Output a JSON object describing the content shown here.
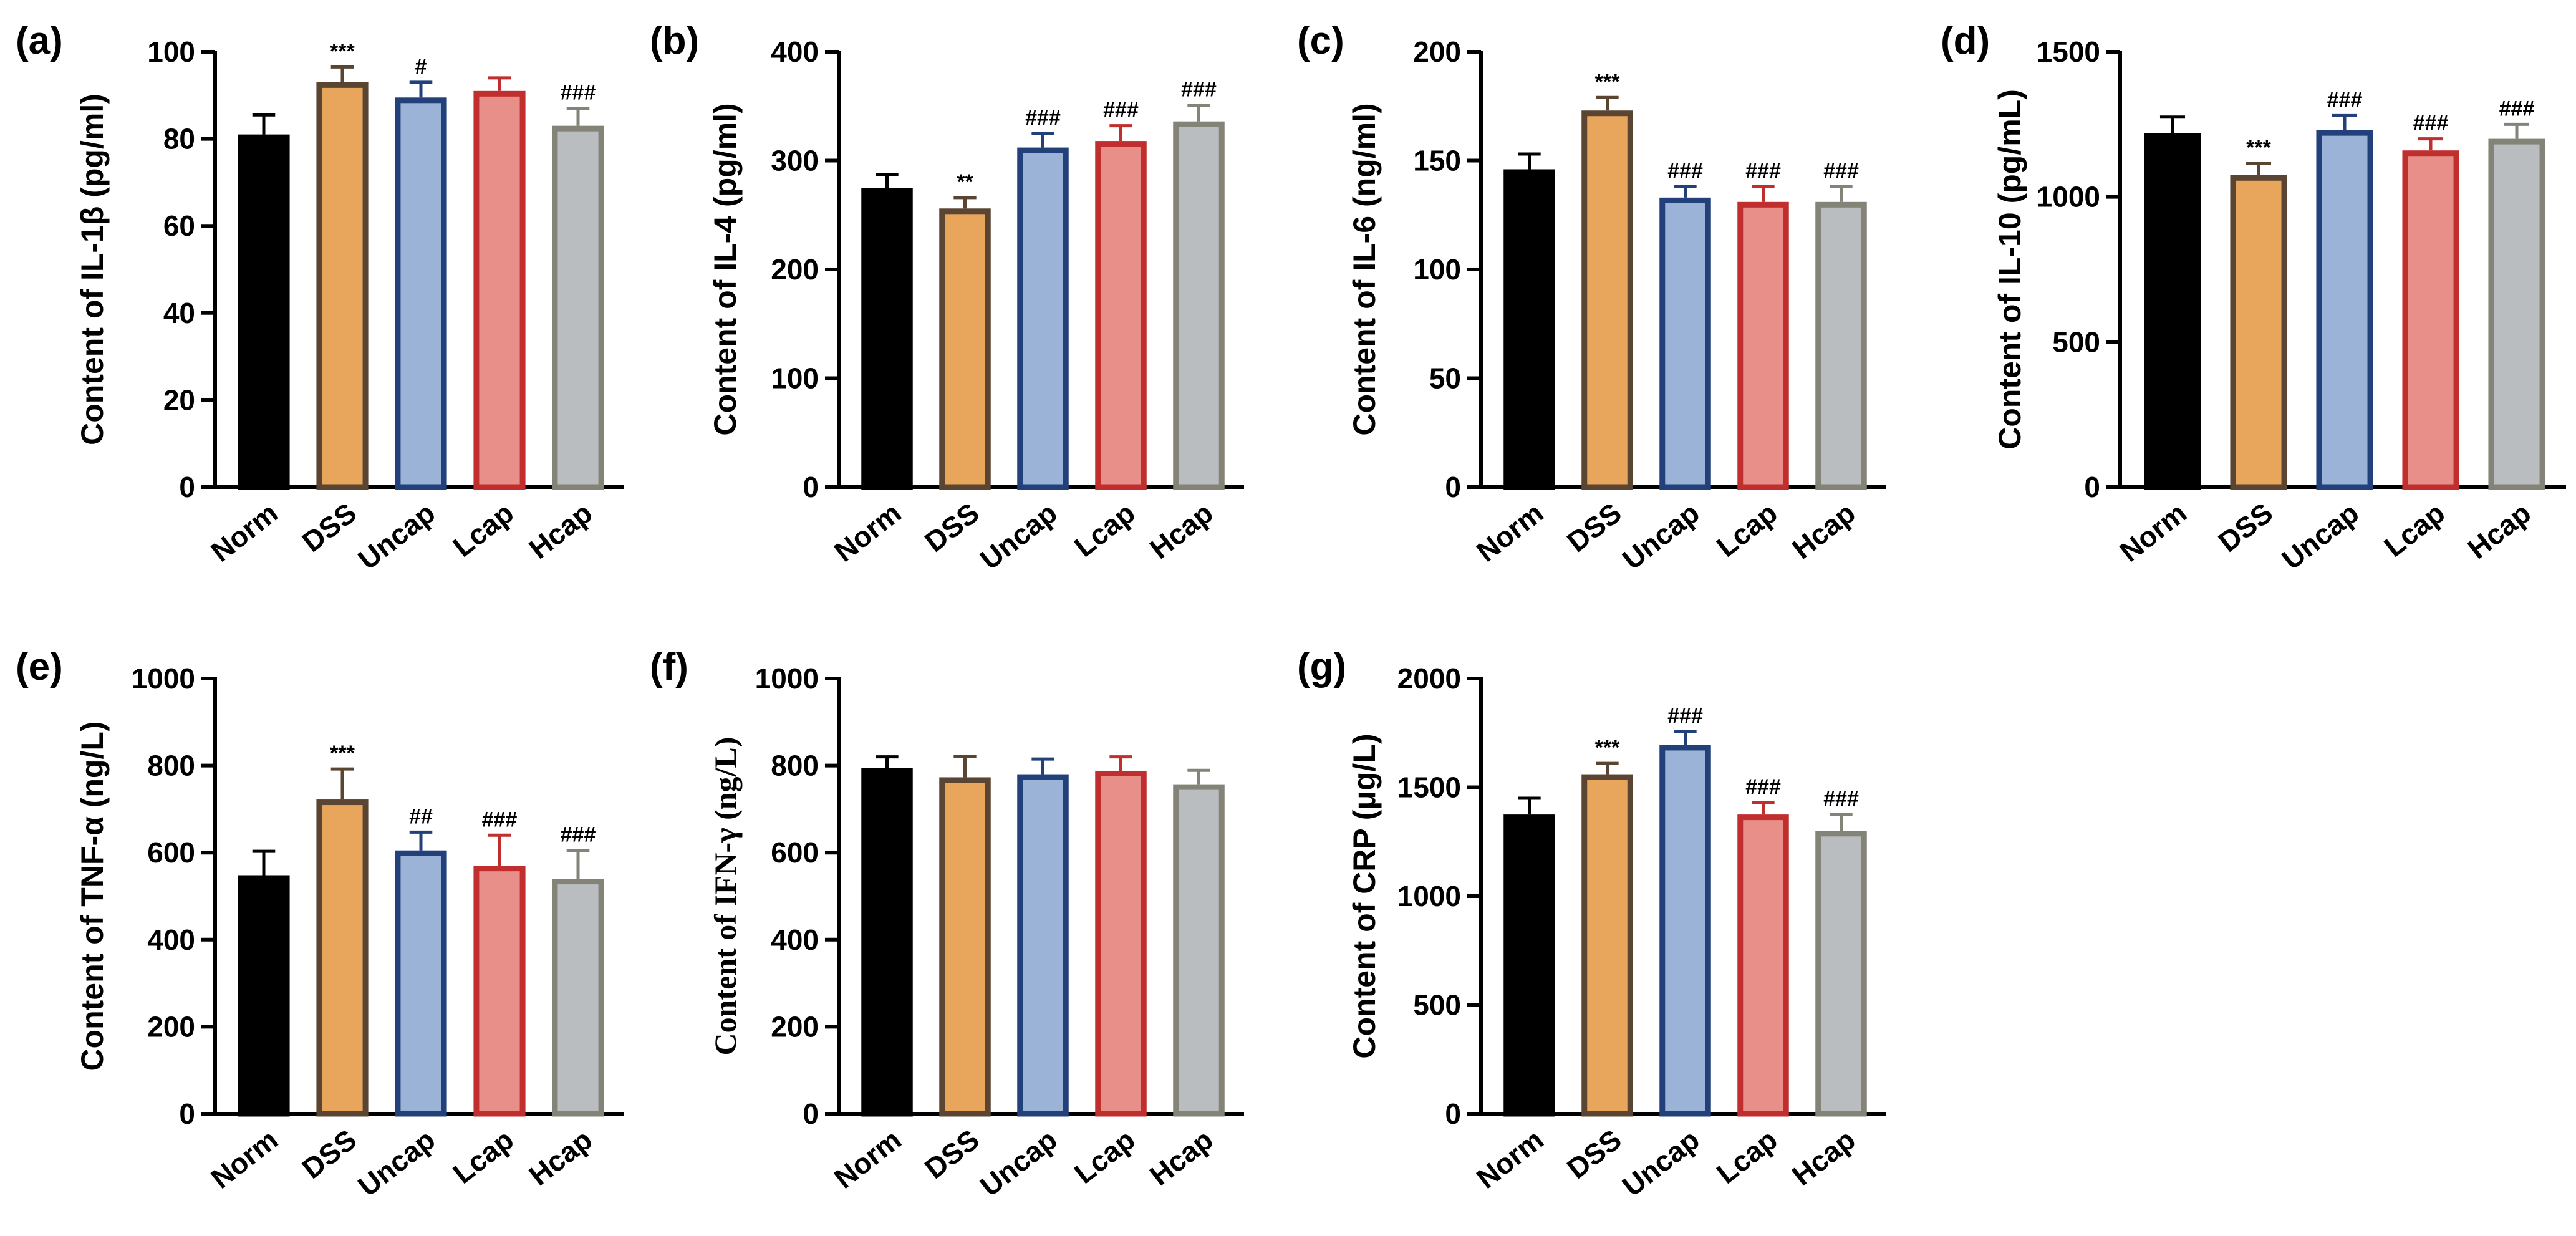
{
  "chart_data": [
    {
      "panel": "(a)",
      "type": "bar",
      "ylabel": "Content of IL-1β (pg/ml)",
      "ylim": [
        0,
        100
      ],
      "yticks": [
        0,
        20,
        40,
        60,
        80,
        100
      ],
      "categories": [
        "Norm",
        "DSS",
        "Uncap",
        "Lcap",
        "Hcap"
      ],
      "values": [
        81,
        93,
        89.5,
        91,
        83
      ],
      "errors": [
        4.5,
        3.5,
        3.5,
        3,
        4
      ],
      "annotations": [
        "",
        "***",
        "#",
        "",
        "###"
      ]
    },
    {
      "panel": "(b)",
      "type": "bar",
      "ylabel": "Content of IL-4 (pg/ml)",
      "ylim": [
        0,
        400
      ],
      "yticks": [
        0,
        100,
        200,
        300,
        400
      ],
      "categories": [
        "Norm",
        "DSS",
        "Uncap",
        "Lcap",
        "Hcap"
      ],
      "values": [
        275,
        256,
        312,
        318,
        336
      ],
      "errors": [
        12,
        10,
        13,
        14,
        15
      ],
      "annotations": [
        "",
        "**",
        "###",
        "###",
        "###"
      ]
    },
    {
      "panel": "(c)",
      "type": "bar",
      "ylabel": "Content of IL-6 (ng/ml)",
      "ylim": [
        0,
        200
      ],
      "yticks": [
        0,
        50,
        100,
        150,
        200
      ],
      "categories": [
        "Norm",
        "DSS",
        "Uncap",
        "Lcap",
        "Hcap"
      ],
      "values": [
        146,
        173,
        133,
        131,
        131
      ],
      "errors": [
        7,
        6,
        5,
        7,
        7
      ],
      "annotations": [
        "",
        "***",
        "###",
        "###",
        "###"
      ]
    },
    {
      "panel": "(d)",
      "type": "bar",
      "ylabel": "Content of IL-10 (pg/mL)",
      "ylim": [
        0,
        1500
      ],
      "yticks": [
        0,
        500,
        1000,
        1500
      ],
      "categories": [
        "Norm",
        "DSS",
        "Uncap",
        "Lcap",
        "Hcap"
      ],
      "values": [
        1220,
        1075,
        1230,
        1160,
        1200
      ],
      "errors": [
        55,
        40,
        50,
        40,
        50
      ],
      "annotations": [
        "",
        "***",
        "###",
        "###",
        "###"
      ]
    },
    {
      "panel": "(e)",
      "type": "bar",
      "ylabel": "Content of TNF-α (ng/L)",
      "ylim": [
        0,
        1000
      ],
      "yticks": [
        0,
        200,
        400,
        600,
        800,
        1000
      ],
      "categories": [
        "Norm",
        "DSS",
        "Uncap",
        "Lcap",
        "Hcap"
      ],
      "values": [
        548,
        722,
        605,
        570,
        540
      ],
      "errors": [
        55,
        70,
        42,
        70,
        65
      ],
      "annotations": [
        "",
        "***",
        "##",
        "###",
        "###"
      ]
    },
    {
      "panel": "(f)",
      "type": "bar",
      "ylabel": "Content of IFN-γ (ng/L)",
      "ylim": [
        0,
        1000
      ],
      "yticks": [
        0,
        200,
        400,
        600,
        800,
        1000
      ],
      "categories": [
        "Norm",
        "DSS",
        "Uncap",
        "Lcap",
        "Hcap"
      ],
      "values": [
        795,
        773,
        780,
        788,
        757
      ],
      "errors": [
        25,
        48,
        35,
        32,
        32
      ],
      "annotations": [
        "",
        "",
        "",
        "",
        ""
      ]
    },
    {
      "panel": "(g)",
      "type": "bar",
      "ylabel": "Content of CRP (μg/L)",
      "ylim": [
        0,
        2000
      ],
      "yticks": [
        0,
        500,
        1000,
        1500,
        2000
      ],
      "categories": [
        "Norm",
        "DSS",
        "Uncap",
        "Lcap",
        "Hcap"
      ],
      "values": [
        1375,
        1560,
        1695,
        1375,
        1300
      ],
      "errors": [
        75,
        50,
        60,
        55,
        75
      ],
      "annotations": [
        "",
        "***",
        "###",
        "###",
        "###"
      ]
    }
  ],
  "colors": {
    "fills": [
      "#000000",
      "#E8A55C",
      "#9BB3D6",
      "#E88F8A",
      "#BABDC0"
    ],
    "strokes": [
      "#000000",
      "#5A4432",
      "#22417A",
      "#C02E2E",
      "#838378"
    ]
  }
}
